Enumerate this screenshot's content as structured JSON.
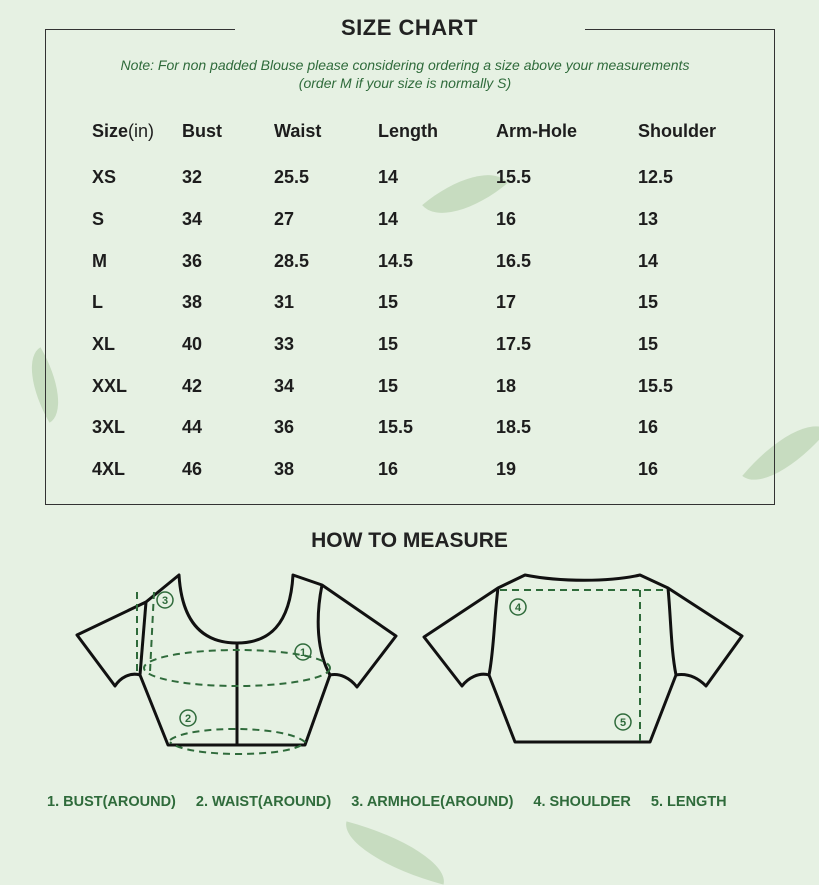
{
  "title": "SIZE CHART",
  "note_line1": "Note: For non padded Blouse please considering ordering a size above your measurements",
  "note_line2": "(order M if your size is normally S)",
  "table": {
    "headers": [
      "Size",
      "Bust",
      "Waist",
      "Length",
      "Arm-Hole",
      "Shoulder"
    ],
    "unit": "(in)",
    "rows": [
      [
        "XS",
        "32",
        "25.5",
        "14",
        "15.5",
        "12.5"
      ],
      [
        "S",
        "34",
        "27",
        "14",
        "16",
        "13"
      ],
      [
        "M",
        "36",
        "28.5",
        "14.5",
        "16.5",
        "14"
      ],
      [
        "L",
        "38",
        "31",
        "15",
        "17",
        "15"
      ],
      [
        "XL",
        "40",
        "33",
        "15",
        "17.5",
        "15"
      ],
      [
        "XXL",
        "42",
        "34",
        "15",
        "18",
        "15.5"
      ],
      [
        "3XL",
        "44",
        "36",
        "15.5",
        "18.5",
        "16"
      ],
      [
        "4XL",
        "46",
        "38",
        "16",
        "19",
        "16"
      ]
    ]
  },
  "how_to_measure": {
    "title": "HOW TO MEASURE",
    "markers": [
      "1",
      "2",
      "3",
      "4",
      "5"
    ],
    "legend": [
      "1. BUST(AROUND)",
      "2. WAIST(AROUND)",
      "3. ARMHOLE(AROUND)",
      "4. SHOULDER",
      "5. LENGTH"
    ]
  },
  "colors": {
    "background": "#e6f1e3",
    "accent_green": "#2f6b3b",
    "outline": "#111111"
  }
}
